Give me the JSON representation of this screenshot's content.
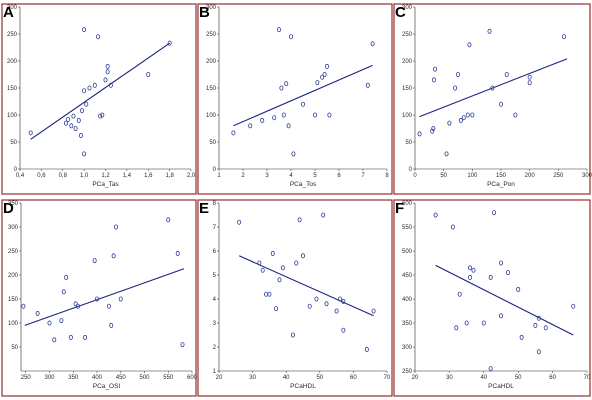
{
  "colors": {
    "frame": "#8a1a1a",
    "points": "#2a3a9a",
    "fit_line": "#1a237e"
  },
  "chart_data": [
    {
      "type": "scatter",
      "letter": "A",
      "xlabel": "PCa_Tas",
      "ylabel": "",
      "xlim": [
        0.4,
        2.0
      ],
      "ylim": [
        0,
        300
      ],
      "xticks": [
        0.4,
        0.6,
        0.8,
        1.0,
        1.2,
        1.4,
        1.6,
        1.8,
        2.0
      ],
      "xtick_labels": [
        "0,4",
        "0,6",
        "0,8",
        "1,0",
        "1,2",
        "1,4",
        "1,6",
        "1,8",
        "2,0"
      ],
      "yticks": [
        0,
        50,
        100,
        150,
        200,
        250,
        300
      ],
      "points": [
        [
          0.5,
          67
        ],
        [
          0.83,
          85
        ],
        [
          0.85,
          92
        ],
        [
          0.88,
          80
        ],
        [
          0.9,
          98
        ],
        [
          0.92,
          75
        ],
        [
          0.95,
          90
        ],
        [
          0.97,
          62
        ],
        [
          0.98,
          108
        ],
        [
          1.0,
          258
        ],
        [
          1.0,
          145
        ],
        [
          1.0,
          28
        ],
        [
          1.02,
          120
        ],
        [
          1.05,
          150
        ],
        [
          1.1,
          155
        ],
        [
          1.13,
          245
        ],
        [
          1.15,
          98
        ],
        [
          1.17,
          100
        ],
        [
          1.2,
          165
        ],
        [
          1.22,
          190
        ],
        [
          1.22,
          180
        ],
        [
          1.25,
          155
        ],
        [
          1.6,
          175
        ],
        [
          1.8,
          233
        ]
      ],
      "fit": [
        [
          0.5,
          55
        ],
        [
          1.8,
          233
        ]
      ]
    },
    {
      "type": "scatter",
      "letter": "B",
      "xlabel": "PCa_Tos",
      "ylabel": "",
      "xlim": [
        1,
        8
      ],
      "ylim": [
        0,
        300
      ],
      "xticks": [
        1,
        2,
        3,
        4,
        5,
        6,
        7,
        8
      ],
      "xtick_labels": [
        "1",
        "2",
        "3",
        "4",
        "5",
        "6",
        "7",
        "8"
      ],
      "yticks": [
        0,
        50,
        100,
        150,
        200,
        250,
        300
      ],
      "points": [
        [
          1.6,
          67
        ],
        [
          2.3,
          80
        ],
        [
          2.8,
          90
        ],
        [
          3.3,
          95
        ],
        [
          3.5,
          258
        ],
        [
          3.6,
          150
        ],
        [
          3.7,
          100
        ],
        [
          3.8,
          158
        ],
        [
          3.9,
          80
        ],
        [
          4.0,
          245
        ],
        [
          4.1,
          28
        ],
        [
          4.5,
          120
        ],
        [
          5.0,
          100
        ],
        [
          5.1,
          160
        ],
        [
          5.3,
          170
        ],
        [
          5.4,
          175
        ],
        [
          5.5,
          190
        ],
        [
          5.6,
          100
        ],
        [
          7.2,
          155
        ],
        [
          7.4,
          232
        ]
      ],
      "fit": [
        [
          1.6,
          80
        ],
        [
          7.4,
          192
        ]
      ]
    },
    {
      "type": "scatter",
      "letter": "C",
      "xlabel": "PCa_Pon",
      "ylabel": "",
      "xlim": [
        0,
        300
      ],
      "ylim": [
        0,
        300
      ],
      "xticks": [
        0,
        50,
        100,
        150,
        200,
        250,
        300
      ],
      "xtick_labels": [
        "0",
        "50",
        "100",
        "150",
        "200",
        "250",
        "300"
      ],
      "yticks": [
        0,
        50,
        100,
        150,
        200,
        250,
        300
      ],
      "points": [
        [
          8,
          65
        ],
        [
          30,
          70
        ],
        [
          32,
          75
        ],
        [
          33,
          165
        ],
        [
          35,
          185
        ],
        [
          55,
          28
        ],
        [
          60,
          85
        ],
        [
          70,
          150
        ],
        [
          75,
          175
        ],
        [
          80,
          90
        ],
        [
          85,
          95
        ],
        [
          92,
          100
        ],
        [
          95,
          230
        ],
        [
          100,
          100
        ],
        [
          130,
          255
        ],
        [
          135,
          150
        ],
        [
          150,
          120
        ],
        [
          160,
          175
        ],
        [
          175,
          100
        ],
        [
          200,
          160
        ],
        [
          200,
          170
        ],
        [
          260,
          245
        ]
      ],
      "fit": [
        [
          8,
          97
        ],
        [
          265,
          204
        ]
      ]
    },
    {
      "type": "scatter",
      "letter": "D",
      "xlabel": "PCa_OSI",
      "ylabel": "",
      "xlim": [
        240,
        600
      ],
      "ylim": [
        0,
        350
      ],
      "xticks": [
        250,
        300,
        350,
        400,
        450,
        500,
        550,
        600
      ],
      "xtick_labels": [
        "250",
        "300",
        "350",
        "400",
        "450",
        "500",
        "550",
        "600"
      ],
      "yticks": [
        50,
        100,
        150,
        200,
        250,
        300,
        350
      ],
      "points": [
        [
          245,
          135
        ],
        [
          275,
          120
        ],
        [
          300,
          100
        ],
        [
          310,
          65
        ],
        [
          325,
          105
        ],
        [
          330,
          165
        ],
        [
          335,
          195
        ],
        [
          345,
          70
        ],
        [
          355,
          140
        ],
        [
          360,
          135
        ],
        [
          375,
          70
        ],
        [
          395,
          230
        ],
        [
          400,
          150
        ],
        [
          425,
          135
        ],
        [
          430,
          95
        ],
        [
          435,
          240
        ],
        [
          440,
          300
        ],
        [
          450,
          150
        ],
        [
          550,
          315
        ],
        [
          570,
          245
        ],
        [
          580,
          55
        ]
      ],
      "fit": [
        [
          248,
          95
        ],
        [
          583,
          213
        ]
      ]
    },
    {
      "type": "scatter",
      "letter": "E",
      "xlabel": "PCaHDL",
      "ylabel": "",
      "xlim": [
        20,
        70
      ],
      "ylim": [
        1.0,
        8.0
      ],
      "xticks": [
        20,
        30,
        40,
        50,
        60,
        70
      ],
      "xtick_labels": [
        "20",
        "30",
        "40",
        "50",
        "60",
        "70"
      ],
      "yticks": [
        1.0,
        2.0,
        3.0,
        4.0,
        5.0,
        6.0,
        7.0,
        8.0
      ],
      "points": [
        [
          26,
          7.2
        ],
        [
          32,
          5.5
        ],
        [
          33,
          5.2
        ],
        [
          34,
          4.2
        ],
        [
          35,
          4.2
        ],
        [
          36,
          5.9
        ],
        [
          37,
          3.6
        ],
        [
          38,
          4.8
        ],
        [
          39,
          5.3
        ],
        [
          42,
          2.5
        ],
        [
          43,
          5.5
        ],
        [
          44,
          7.3
        ],
        [
          45,
          5.8
        ],
        [
          47,
          3.7
        ],
        [
          49,
          4.0
        ],
        [
          51,
          7.5
        ],
        [
          52,
          3.8
        ],
        [
          55,
          3.5
        ],
        [
          56,
          4.0
        ],
        [
          57,
          3.9
        ],
        [
          57,
          2.7
        ],
        [
          64,
          1.9
        ],
        [
          66,
          3.5
        ]
      ],
      "fit": [
        [
          26,
          5.8
        ],
        [
          66,
          3.3
        ]
      ]
    },
    {
      "type": "scatter",
      "letter": "F",
      "xlabel": "PCaHDL",
      "ylabel": "",
      "xlim": [
        20,
        70
      ],
      "ylim": [
        250,
        600
      ],
      "xticks": [
        20,
        30,
        40,
        50,
        60,
        70
      ],
      "xtick_labels": [
        "20",
        "30",
        "40",
        "50",
        "60",
        "70"
      ],
      "yticks": [
        250,
        300,
        350,
        400,
        450,
        500,
        550,
        600
      ],
      "points": [
        [
          26,
          575
        ],
        [
          31,
          550
        ],
        [
          32,
          340
        ],
        [
          33,
          410
        ],
        [
          35,
          350
        ],
        [
          36,
          465
        ],
        [
          36,
          445
        ],
        [
          37,
          460
        ],
        [
          40,
          350
        ],
        [
          42,
          255
        ],
        [
          42,
          445
        ],
        [
          43,
          580
        ],
        [
          45,
          475
        ],
        [
          45,
          365
        ],
        [
          47,
          455
        ],
        [
          50,
          420
        ],
        [
          51,
          320
        ],
        [
          55,
          345
        ],
        [
          56,
          360
        ],
        [
          56,
          290
        ],
        [
          58,
          340
        ],
        [
          66,
          385
        ]
      ],
      "fit": [
        [
          26,
          470
        ],
        [
          66,
          325
        ]
      ]
    }
  ]
}
